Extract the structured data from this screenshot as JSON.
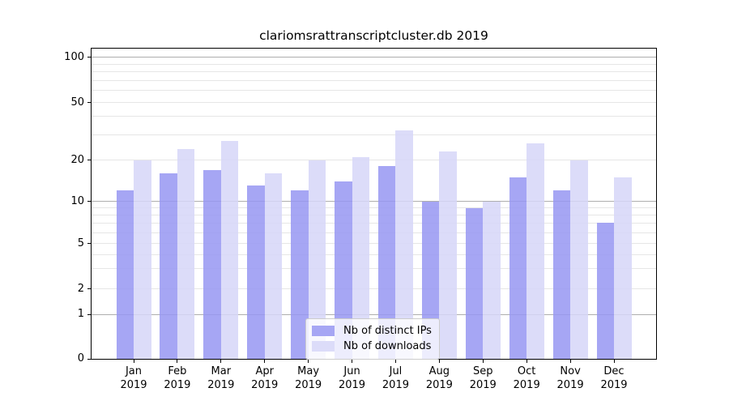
{
  "chart_data": {
    "type": "bar",
    "title": "clariomsrattranscriptcluster.db 2019",
    "categories": [
      "Jan",
      "Feb",
      "Mar",
      "Apr",
      "May",
      "Jun",
      "Jul",
      "Aug",
      "Sep",
      "Oct",
      "Nov",
      "Dec"
    ],
    "x_year": "2019",
    "series": [
      {
        "name": "Nb of distinct IPs",
        "color": "#a6a6f4",
        "values": [
          12,
          16,
          17,
          13,
          12,
          14,
          18,
          10,
          9,
          15,
          12,
          7
        ]
      },
      {
        "name": "Nb of downloads",
        "color": "#dcdcf9",
        "values": [
          20,
          24,
          27,
          16,
          20,
          21,
          32,
          23,
          10,
          26,
          20,
          15
        ]
      }
    ],
    "y_ticks": [
      100,
      50,
      20,
      10,
      5,
      2,
      1,
      0
    ],
    "yscale": "log-like (log above 1, linear 0-1)",
    "ylim": [
      0,
      100
    ],
    "grid": true,
    "legend_position": "bottom-center"
  }
}
